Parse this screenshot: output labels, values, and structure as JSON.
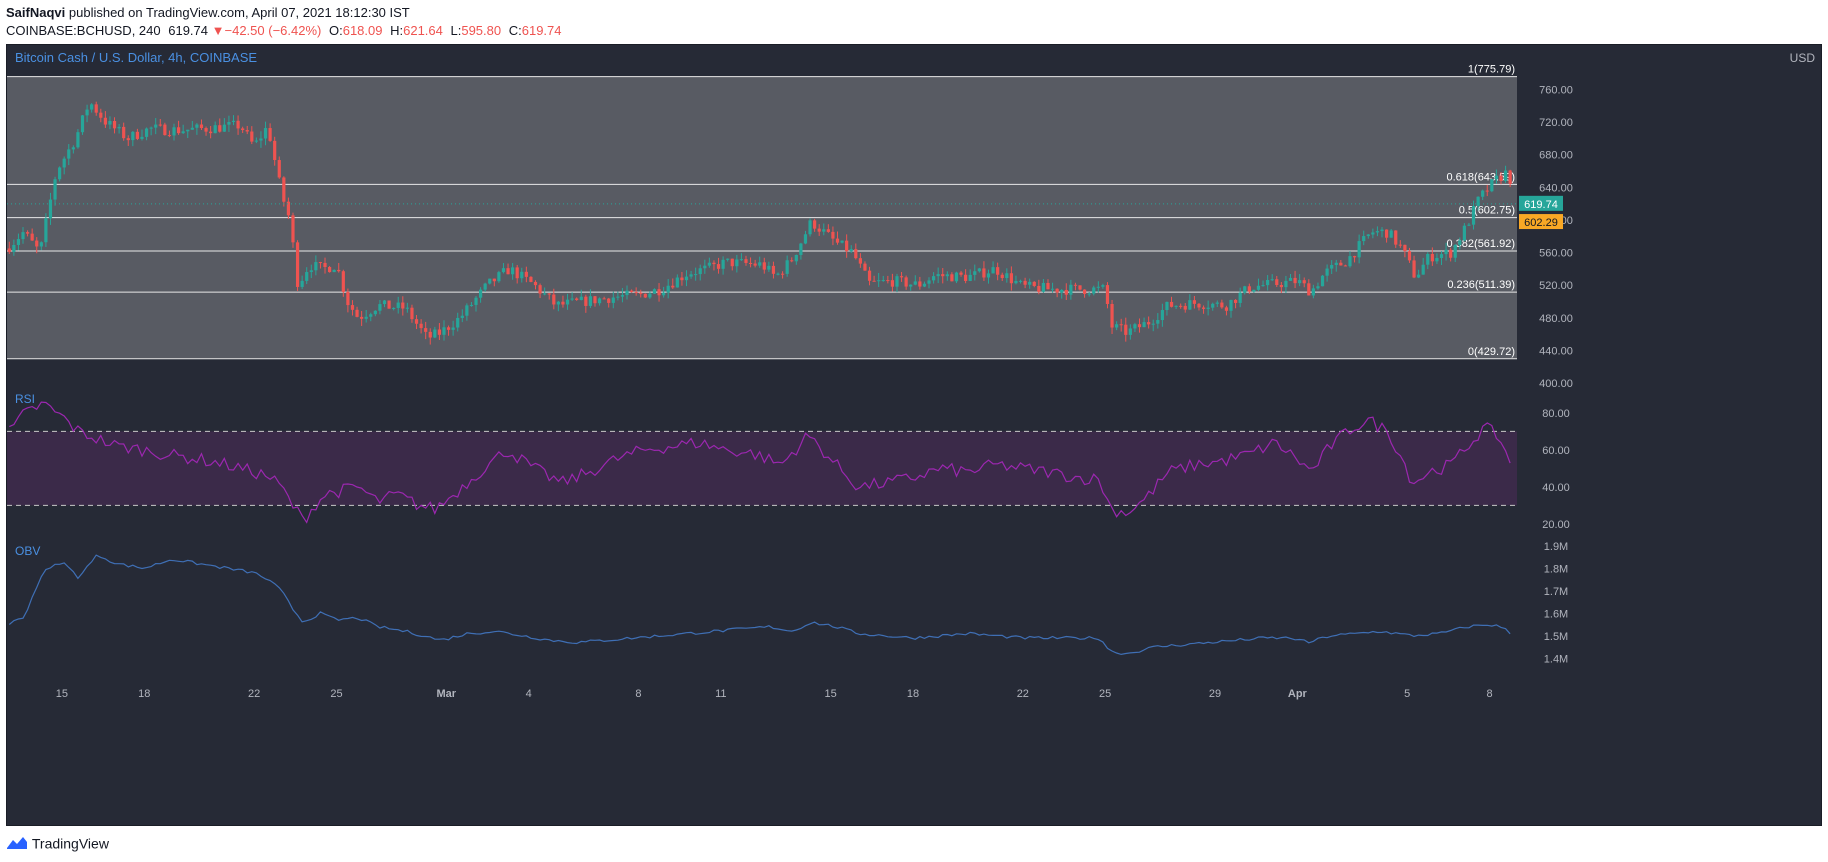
{
  "header": {
    "author": "SaifNaqvi",
    "published_text": "published on TradingView.com, April 07, 2021 18:12:30 IST",
    "symbol": "COINBASE:BCHUSD, 240",
    "last": "619.74",
    "change": "−42.50 (−6.42%)",
    "open_label": "O:",
    "open": "618.09",
    "high_label": "H:",
    "high": "621.64",
    "low_label": "L:",
    "low": "595.80",
    "close_label": "C:",
    "close": "619.74"
  },
  "footer": {
    "brand": "TradingView"
  },
  "colors": {
    "bg": "#262a36",
    "fib_zone": "#585b63",
    "up": "#26a69a",
    "down": "#ef5350",
    "rsi": "#9c27b0",
    "rsi_band": "#3b2a49",
    "obv": "#3f6fb5",
    "axis_text": "#b2b5be",
    "title_text": "#4a90e2",
    "price_tag": "#26a69a",
    "fib_tag": "#f9a825"
  },
  "chart_data": [
    {
      "type": "candlestick",
      "title": "Bitcoin Cash / U.S. Dollar, 4h, COINBASE",
      "y_unit": "USD",
      "ylim": [
        400,
        790
      ],
      "y_ticks": [
        "760.00",
        "720.00",
        "680.00",
        "640.00",
        "600.00",
        "560.00",
        "520.00",
        "480.00",
        "440.00",
        "400.00"
      ],
      "x_ticks": [
        "15",
        "18",
        "22",
        "25",
        "Mar",
        "4",
        "8",
        "11",
        "15",
        "18",
        "22",
        "25",
        "29",
        "Apr",
        "5",
        "8"
      ],
      "x_tick_pos": [
        15,
        18,
        22,
        25,
        29,
        32,
        36,
        39,
        43,
        46,
        50,
        53,
        57,
        60,
        64,
        67
      ],
      "x_range": [
        13.0,
        68.0
      ],
      "fib_levels": [
        {
          "label": "1(775.79)",
          "value": 775.79
        },
        {
          "label": "0.618(643.59)",
          "value": 643.59
        },
        {
          "label": "0.5(602.75)",
          "value": 602.75
        },
        {
          "label": "0.382(561.92)",
          "value": 561.92
        },
        {
          "label": "0.236(511.39)",
          "value": 511.39
        },
        {
          "label": "0(429.72)",
          "value": 429.72
        }
      ],
      "last_price": {
        "label": "619.74",
        "value": 619.74
      },
      "fib_tag": {
        "label": "602.29",
        "value": 602.29
      },
      "anchors": [
        [
          13.0,
          565
        ],
        [
          13.6,
          585
        ],
        [
          14.2,
          560
        ],
        [
          14.8,
          660
        ],
        [
          15.5,
          700
        ],
        [
          16.0,
          745
        ],
        [
          16.6,
          720
        ],
        [
          17.4,
          700
        ],
        [
          18.2,
          712
        ],
        [
          19.2,
          710
        ],
        [
          20.2,
          712
        ],
        [
          21.5,
          716
        ],
        [
          22.0,
          690
        ],
        [
          22.5,
          715
        ],
        [
          23.0,
          632
        ],
        [
          23.3,
          600
        ],
        [
          23.6,
          520
        ],
        [
          24.0,
          545
        ],
        [
          24.5,
          540
        ],
        [
          25.0,
          545
        ],
        [
          25.4,
          500
        ],
        [
          25.8,
          480
        ],
        [
          26.5,
          495
        ],
        [
          27.5,
          492
        ],
        [
          28.3,
          455
        ],
        [
          28.8,
          462
        ],
        [
          29.5,
          480
        ],
        [
          30.5,
          520
        ],
        [
          31.3,
          540
        ],
        [
          32.2,
          520
        ],
        [
          33.0,
          495
        ],
        [
          34.0,
          500
        ],
        [
          35.0,
          505
        ],
        [
          36.0,
          508
        ],
        [
          36.8,
          515
        ],
        [
          37.8,
          535
        ],
        [
          38.5,
          540
        ],
        [
          39.2,
          548
        ],
        [
          40.5,
          545
        ],
        [
          41.0,
          530
        ],
        [
          41.6,
          552
        ],
        [
          42.3,
          598
        ],
        [
          43.2,
          572
        ],
        [
          43.8,
          560
        ],
        [
          44.4,
          522
        ],
        [
          45.3,
          525
        ],
        [
          46.2,
          520
        ],
        [
          46.8,
          532
        ],
        [
          48.0,
          530
        ],
        [
          49.0,
          540
        ],
        [
          50.0,
          518
        ],
        [
          51.0,
          515
        ],
        [
          52.0,
          515
        ],
        [
          53.0,
          515
        ],
        [
          53.2,
          470
        ],
        [
          53.8,
          462
        ],
        [
          54.6,
          475
        ],
        [
          55.3,
          495
        ],
        [
          56.3,
          498
        ],
        [
          57.4,
          495
        ],
        [
          58.3,
          518
        ],
        [
          59.3,
          522
        ],
        [
          60.0,
          525
        ],
        [
          60.5,
          512
        ],
        [
          61.0,
          535
        ],
        [
          61.8,
          550
        ],
        [
          62.7,
          585
        ],
        [
          63.3,
          585
        ],
        [
          63.8,
          565
        ],
        [
          64.3,
          530
        ],
        [
          64.8,
          555
        ],
        [
          65.6,
          560
        ],
        [
          66.2,
          595
        ],
        [
          66.6,
          625
        ],
        [
          67.2,
          648
        ],
        [
          67.7,
          660
        ],
        [
          67.9,
          620
        ]
      ]
    },
    {
      "type": "line",
      "title": "RSI",
      "ylim": [
        14,
        94
      ],
      "y_ticks": [
        "80.00",
        "60.00",
        "40.00",
        "20.00"
      ],
      "bands": [
        70,
        30
      ],
      "anchors": [
        [
          13.0,
          68
        ],
        [
          13.6,
          79
        ],
        [
          14.3,
          85
        ],
        [
          15.0,
          78
        ],
        [
          15.6,
          70
        ],
        [
          16.3,
          66
        ],
        [
          17.0,
          62
        ],
        [
          18.0,
          60
        ],
        [
          19.0,
          57
        ],
        [
          20.0,
          55
        ],
        [
          21.0,
          52
        ],
        [
          22.0,
          48
        ],
        [
          22.5,
          46
        ],
        [
          23.0,
          40
        ],
        [
          23.4,
          30
        ],
        [
          23.8,
          22
        ],
        [
          24.2,
          30
        ],
        [
          24.6,
          36
        ],
        [
          25.2,
          38
        ],
        [
          25.8,
          40
        ],
        [
          26.5,
          32
        ],
        [
          27.2,
          36
        ],
        [
          28.0,
          30
        ],
        [
          28.6,
          28
        ],
        [
          29.2,
          35
        ],
        [
          30.2,
          48
        ],
        [
          31.2,
          60
        ],
        [
          32.2,
          50
        ],
        [
          33.2,
          42
        ],
        [
          34.2,
          48
        ],
        [
          35.2,
          55
        ],
        [
          36.2,
          60
        ],
        [
          37.2,
          62
        ],
        [
          38.2,
          64
        ],
        [
          39.2,
          60
        ],
        [
          40.2,
          58
        ],
        [
          41.2,
          52
        ],
        [
          42.2,
          68
        ],
        [
          43.0,
          55
        ],
        [
          44.0,
          40
        ],
        [
          45.0,
          42
        ],
        [
          46.0,
          45
        ],
        [
          47.0,
          50
        ],
        [
          48.0,
          48
        ],
        [
          49.0,
          52
        ],
        [
          50.0,
          50
        ],
        [
          51.0,
          48
        ],
        [
          52.0,
          45
        ],
        [
          52.8,
          44
        ],
        [
          53.2,
          28
        ],
        [
          53.8,
          26
        ],
        [
          54.5,
          34
        ],
        [
          55.3,
          48
        ],
        [
          56.3,
          52
        ],
        [
          57.3,
          54
        ],
        [
          58.3,
          58
        ],
        [
          59.2,
          64
        ],
        [
          60.0,
          55
        ],
        [
          60.5,
          48
        ],
        [
          61.2,
          62
        ],
        [
          62.0,
          72
        ],
        [
          62.6,
          76
        ],
        [
          63.3,
          70
        ],
        [
          63.8,
          56
        ],
        [
          64.2,
          42
        ],
        [
          64.8,
          48
        ],
        [
          65.6,
          52
        ],
        [
          66.2,
          62
        ],
        [
          66.8,
          72
        ],
        [
          67.3,
          68
        ],
        [
          67.8,
          52
        ]
      ]
    },
    {
      "type": "line",
      "title": "OBV",
      "ylim": [
        1.37,
        1.93
      ],
      "y_ticks": [
        "1.9M",
        "1.8M",
        "1.7M",
        "1.6M",
        "1.5M",
        "1.4M"
      ],
      "y_tick_values": [
        1.9,
        1.8,
        1.7,
        1.6,
        1.5,
        1.4
      ],
      "anchors": [
        [
          13.0,
          1.55
        ],
        [
          13.6,
          1.58
        ],
        [
          14.3,
          1.78
        ],
        [
          15.0,
          1.83
        ],
        [
          15.6,
          1.76
        ],
        [
          16.3,
          1.86
        ],
        [
          17.0,
          1.82
        ],
        [
          18.0,
          1.8
        ],
        [
          19.0,
          1.84
        ],
        [
          20.0,
          1.82
        ],
        [
          21.0,
          1.8
        ],
        [
          22.0,
          1.78
        ],
        [
          22.5,
          1.75
        ],
        [
          23.0,
          1.7
        ],
        [
          23.4,
          1.62
        ],
        [
          23.8,
          1.56
        ],
        [
          24.4,
          1.6
        ],
        [
          25.0,
          1.57
        ],
        [
          25.8,
          1.58
        ],
        [
          26.5,
          1.54
        ],
        [
          27.5,
          1.52
        ],
        [
          28.2,
          1.5
        ],
        [
          28.8,
          1.48
        ],
        [
          29.8,
          1.51
        ],
        [
          30.8,
          1.52
        ],
        [
          31.8,
          1.5
        ],
        [
          32.8,
          1.48
        ],
        [
          33.8,
          1.47
        ],
        [
          34.8,
          1.48
        ],
        [
          35.8,
          1.49
        ],
        [
          36.8,
          1.5
        ],
        [
          37.8,
          1.51
        ],
        [
          38.8,
          1.52
        ],
        [
          39.8,
          1.53
        ],
        [
          40.8,
          1.54
        ],
        [
          41.6,
          1.52
        ],
        [
          42.3,
          1.56
        ],
        [
          43.2,
          1.54
        ],
        [
          44.0,
          1.51
        ],
        [
          45.0,
          1.5
        ],
        [
          46.0,
          1.49
        ],
        [
          47.0,
          1.5
        ],
        [
          48.0,
          1.51
        ],
        [
          49.0,
          1.5
        ],
        [
          50.0,
          1.49
        ],
        [
          51.0,
          1.49
        ],
        [
          52.0,
          1.49
        ],
        [
          52.8,
          1.49
        ],
        [
          53.2,
          1.43
        ],
        [
          53.8,
          1.42
        ],
        [
          54.8,
          1.45
        ],
        [
          55.8,
          1.46
        ],
        [
          56.8,
          1.47
        ],
        [
          57.8,
          1.48
        ],
        [
          58.8,
          1.49
        ],
        [
          59.8,
          1.49
        ],
        [
          60.4,
          1.47
        ],
        [
          61.2,
          1.5
        ],
        [
          62.2,
          1.51
        ],
        [
          63.0,
          1.52
        ],
        [
          64.2,
          1.5
        ],
        [
          65.2,
          1.51
        ],
        [
          66.2,
          1.54
        ],
        [
          67.0,
          1.55
        ],
        [
          67.4,
          1.54
        ],
        [
          67.8,
          1.51
        ]
      ]
    }
  ]
}
